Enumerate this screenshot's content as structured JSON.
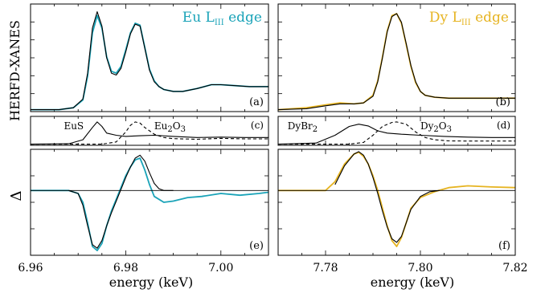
{
  "figure": {
    "ylabel_top": "HERFD-XANES",
    "ylabel_bottom": "Δ",
    "xlabel_left": "energy (keV)",
    "xlabel_right": "energy (keV)",
    "colors": {
      "eu": "#1aa3b8",
      "dy": "#e6b422",
      "fit": "#000000",
      "zero": "#000000"
    }
  },
  "chart_data": [
    {
      "type": "line",
      "panel": "(a)",
      "title_main": "Eu L",
      "title_sub": "III",
      "title_tail": " edge",
      "xlim": [
        6.96,
        7.01
      ],
      "x_ticks": [
        "6.96",
        "6.98",
        "7.00"
      ],
      "x_tick_values": [
        6.96,
        6.98,
        7.0
      ],
      "series": [
        {
          "name": "",
          "role": "measured",
          "color": "#1aa3b8",
          "x": [
            6.96,
            6.966,
            6.969,
            6.971,
            6.972,
            6.973,
            6.974,
            6.975,
            6.976,
            6.977,
            6.978,
            6.979,
            6.98,
            6.981,
            6.982,
            6.983,
            6.984,
            6.985,
            6.986,
            6.987,
            6.988,
            6.99,
            6.992,
            6.995,
            6.998,
            7.0,
            7.003,
            7.006,
            7.01
          ],
          "y": [
            0.0,
            0.0,
            0.02,
            0.1,
            0.35,
            0.8,
            0.98,
            0.85,
            0.55,
            0.4,
            0.38,
            0.45,
            0.62,
            0.8,
            0.9,
            0.88,
            0.65,
            0.42,
            0.3,
            0.24,
            0.21,
            0.19,
            0.19,
            0.22,
            0.26,
            0.26,
            0.25,
            0.24,
            0.24
          ]
        },
        {
          "name": "",
          "role": "fit",
          "color": "#000000",
          "x": [
            6.96,
            6.966,
            6.969,
            6.971,
            6.972,
            6.973,
            6.974,
            6.975,
            6.976,
            6.977,
            6.978,
            6.979,
            6.98,
            6.981,
            6.982,
            6.983,
            6.984,
            6.985,
            6.986,
            6.987,
            6.988,
            6.99,
            6.992,
            6.995,
            6.998,
            7.0,
            7.003,
            7.006,
            7.01
          ],
          "y": [
            0.0,
            0.0,
            0.02,
            0.11,
            0.38,
            0.85,
            1.02,
            0.87,
            0.54,
            0.38,
            0.36,
            0.43,
            0.6,
            0.79,
            0.89,
            0.87,
            0.64,
            0.41,
            0.29,
            0.24,
            0.21,
            0.19,
            0.19,
            0.22,
            0.26,
            0.26,
            0.25,
            0.24,
            0.24
          ]
        }
      ]
    },
    {
      "type": "line",
      "panel": "(b)",
      "title_main": "Dy L",
      "title_sub": "III",
      "title_tail": " edge",
      "xlim": [
        7.77,
        7.82
      ],
      "x_ticks": [
        "7.78",
        "7.80",
        "7.82"
      ],
      "x_tick_values": [
        7.78,
        7.8,
        7.82
      ],
      "series": [
        {
          "name": "",
          "role": "measured",
          "color": "#e6b422",
          "x": [
            7.77,
            7.776,
            7.78,
            7.783,
            7.786,
            7.788,
            7.79,
            7.791,
            7.792,
            7.793,
            7.794,
            7.795,
            7.796,
            7.797,
            7.798,
            7.799,
            7.8,
            7.801,
            7.803,
            7.806,
            7.81,
            7.815,
            7.82
          ],
          "y": [
            0.0,
            0.02,
            0.05,
            0.07,
            0.06,
            0.07,
            0.15,
            0.3,
            0.55,
            0.82,
            0.98,
            1.0,
            0.9,
            0.68,
            0.45,
            0.28,
            0.19,
            0.15,
            0.13,
            0.12,
            0.12,
            0.12,
            0.12
          ]
        },
        {
          "name": "",
          "role": "fit",
          "color": "#000000",
          "x": [
            7.77,
            7.776,
            7.78,
            7.783,
            7.786,
            7.788,
            7.79,
            7.791,
            7.792,
            7.793,
            7.794,
            7.795,
            7.796,
            7.797,
            7.798,
            7.799,
            7.8,
            7.801,
            7.803,
            7.806,
            7.81,
            7.815,
            7.82
          ],
          "y": [
            0.0,
            0.01,
            0.04,
            0.06,
            0.06,
            0.07,
            0.14,
            0.29,
            0.54,
            0.81,
            0.97,
            1.0,
            0.91,
            0.69,
            0.46,
            0.29,
            0.19,
            0.15,
            0.13,
            0.12,
            0.12,
            0.12,
            0.12
          ]
        }
      ]
    },
    {
      "type": "line",
      "panel": "(c)",
      "xlim": [
        6.96,
        7.01
      ],
      "labels": [
        {
          "text": "EuS",
          "sub": "",
          "x": 6.967,
          "y": 0.85
        },
        {
          "text": "Eu",
          "sub": "2",
          "tail": "O",
          "sub2": "3",
          "x": 6.986,
          "y": 0.85
        }
      ],
      "series": [
        {
          "name": "EuS",
          "role": "component",
          "style": "solid",
          "x": [
            6.96,
            6.968,
            6.971,
            6.973,
            6.974,
            6.975,
            6.976,
            6.978,
            6.98,
            6.983,
            6.986,
            6.99,
            6.995,
            7.0,
            7.005,
            7.01
          ],
          "y": [
            0.0,
            0.02,
            0.2,
            0.75,
            1.0,
            0.8,
            0.5,
            0.4,
            0.35,
            0.38,
            0.4,
            0.35,
            0.3,
            0.32,
            0.3,
            0.3
          ]
        },
        {
          "name": "Eu2O3",
          "role": "component",
          "style": "dashed",
          "x": [
            6.96,
            6.975,
            6.978,
            6.98,
            6.981,
            6.982,
            6.983,
            6.984,
            6.986,
            6.988,
            6.99,
            6.995,
            7.0,
            7.005,
            7.01
          ],
          "y": [
            0.0,
            0.0,
            0.1,
            0.55,
            0.85,
            1.0,
            0.95,
            0.75,
            0.45,
            0.3,
            0.25,
            0.22,
            0.26,
            0.24,
            0.24
          ]
        }
      ]
    },
    {
      "type": "line",
      "panel": "(d)",
      "xlim": [
        7.77,
        7.82
      ],
      "labels": [
        {
          "text": "DyBr",
          "sub": "2",
          "x": 7.772,
          "y": 0.85
        },
        {
          "text": "Dy",
          "sub": "2",
          "tail": "O",
          "sub2": "3",
          "x": 7.8,
          "y": 0.85
        }
      ],
      "series": [
        {
          "name": "DyBr2",
          "role": "component",
          "style": "solid",
          "x": [
            7.77,
            7.778,
            7.782,
            7.785,
            7.787,
            7.789,
            7.791,
            7.793,
            7.796,
            7.8,
            7.805,
            7.81,
            7.815,
            7.82
          ],
          "y": [
            0.0,
            0.05,
            0.4,
            0.8,
            0.9,
            0.82,
            0.6,
            0.5,
            0.45,
            0.4,
            0.35,
            0.32,
            0.3,
            0.3
          ]
        },
        {
          "name": "Dy2O3",
          "role": "component",
          "style": "dashed",
          "x": [
            7.77,
            7.785,
            7.788,
            7.79,
            7.792,
            7.794,
            7.795,
            7.797,
            7.799,
            7.801,
            7.803,
            7.806,
            7.81,
            7.815,
            7.82
          ],
          "y": [
            0.0,
            0.0,
            0.08,
            0.4,
            0.8,
            0.98,
            1.0,
            0.9,
            0.55,
            0.3,
            0.2,
            0.15,
            0.14,
            0.14,
            0.14
          ]
        }
      ]
    },
    {
      "type": "line",
      "panel": "(e)",
      "xlim": [
        6.96,
        7.01
      ],
      "ylim": [
        -1.1,
        0.7
      ],
      "series": [
        {
          "name": "",
          "role": "measured",
          "color": "#1aa3b8",
          "x": [
            6.96,
            6.968,
            6.97,
            6.971,
            6.972,
            6.973,
            6.974,
            6.975,
            6.976,
            6.977,
            6.978,
            6.979,
            6.98,
            6.981,
            6.982,
            6.983,
            6.984,
            6.985,
            6.986,
            6.988,
            6.99,
            6.993,
            6.996,
            7.0,
            7.004,
            7.008,
            7.01
          ],
          "y": [
            0.0,
            0.0,
            -0.05,
            -0.2,
            -0.55,
            -0.95,
            -1.02,
            -0.9,
            -0.6,
            -0.35,
            -0.15,
            0.05,
            0.25,
            0.4,
            0.52,
            0.55,
            0.35,
            0.1,
            -0.1,
            -0.2,
            -0.18,
            -0.12,
            -0.1,
            -0.05,
            -0.08,
            -0.05,
            -0.03
          ]
        },
        {
          "name": "",
          "role": "fit",
          "color": "#000000",
          "x": [
            6.968,
            6.97,
            6.971,
            6.972,
            6.973,
            6.974,
            6.975,
            6.976,
            6.977,
            6.978,
            6.979,
            6.98,
            6.981,
            6.982,
            6.983,
            6.984,
            6.985,
            6.986,
            6.987,
            6.988,
            6.99
          ],
          "y": [
            0.0,
            -0.05,
            -0.25,
            -0.6,
            -0.92,
            -0.98,
            -0.85,
            -0.6,
            -0.38,
            -0.18,
            0.02,
            0.22,
            0.4,
            0.55,
            0.6,
            0.5,
            0.3,
            0.12,
            0.03,
            0.0,
            0.0
          ]
        },
        {
          "name": "",
          "role": "zero",
          "color": "#000000",
          "x": [
            6.96,
            7.01
          ],
          "y": [
            0,
            0
          ]
        }
      ]
    },
    {
      "type": "line",
      "panel": "(f)",
      "xlim": [
        7.77,
        7.82
      ],
      "ylim": [
        -1.1,
        0.7
      ],
      "series": [
        {
          "name": "",
          "role": "measured",
          "color": "#e6b422",
          "x": [
            7.77,
            7.78,
            7.782,
            7.784,
            7.786,
            7.787,
            7.788,
            7.789,
            7.79,
            7.791,
            7.792,
            7.793,
            7.794,
            7.795,
            7.796,
            7.797,
            7.798,
            7.8,
            7.803,
            7.806,
            7.81,
            7.815,
            7.82
          ],
          "y": [
            0.0,
            0.0,
            0.15,
            0.45,
            0.62,
            0.65,
            0.58,
            0.45,
            0.25,
            0.0,
            -0.3,
            -0.6,
            -0.85,
            -0.95,
            -0.8,
            -0.55,
            -0.3,
            -0.12,
            -0.02,
            0.05,
            0.08,
            0.06,
            0.05
          ]
        },
        {
          "name": "",
          "role": "fit",
          "color": "#000000",
          "x": [
            7.782,
            7.784,
            7.786,
            7.787,
            7.788,
            7.789,
            7.79,
            7.791,
            7.792,
            7.793,
            7.794,
            7.795,
            7.796,
            7.797,
            7.798,
            7.8,
            7.802,
            7.804
          ],
          "y": [
            0.1,
            0.42,
            0.62,
            0.66,
            0.6,
            0.45,
            0.22,
            -0.05,
            -0.35,
            -0.62,
            -0.82,
            -0.88,
            -0.78,
            -0.55,
            -0.32,
            -0.1,
            -0.02,
            0.0
          ]
        },
        {
          "name": "",
          "role": "zero",
          "color": "#000000",
          "x": [
            7.77,
            7.82
          ],
          "y": [
            0,
            0
          ]
        }
      ]
    }
  ]
}
